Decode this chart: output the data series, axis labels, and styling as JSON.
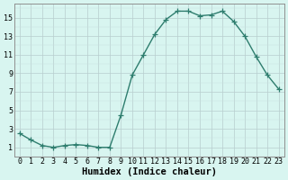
{
  "x": [
    0,
    1,
    2,
    3,
    4,
    5,
    6,
    7,
    8,
    9,
    10,
    11,
    12,
    13,
    14,
    15,
    16,
    17,
    18,
    19,
    20,
    21,
    22,
    23
  ],
  "y": [
    2.5,
    1.8,
    1.2,
    1.0,
    1.2,
    1.3,
    1.2,
    1.0,
    1.0,
    4.5,
    8.8,
    11.0,
    13.2,
    14.8,
    15.7,
    15.7,
    15.2,
    15.3,
    15.7,
    14.6,
    13.0,
    10.8,
    8.8,
    7.3
  ],
  "line_color": "#2e7d6e",
  "marker": "+",
  "markersize": 4,
  "linewidth": 1.0,
  "bg_color": "#d8f5f0",
  "xlabel": "Humidex (Indice chaleur)",
  "xlabel_fontsize": 7.5,
  "ylabel_ticks": [
    1,
    3,
    5,
    7,
    9,
    11,
    13,
    15
  ],
  "xlim": [
    -0.5,
    23.5
  ],
  "ylim": [
    0.0,
    16.5
  ],
  "xtick_labels": [
    "0",
    "1",
    "2",
    "3",
    "4",
    "5",
    "6",
    "7",
    "8",
    "9",
    "10",
    "11",
    "12",
    "13",
    "14",
    "15",
    "16",
    "17",
    "18",
    "19",
    "20",
    "21",
    "22",
    "23"
  ],
  "tick_fontsize": 6.0
}
